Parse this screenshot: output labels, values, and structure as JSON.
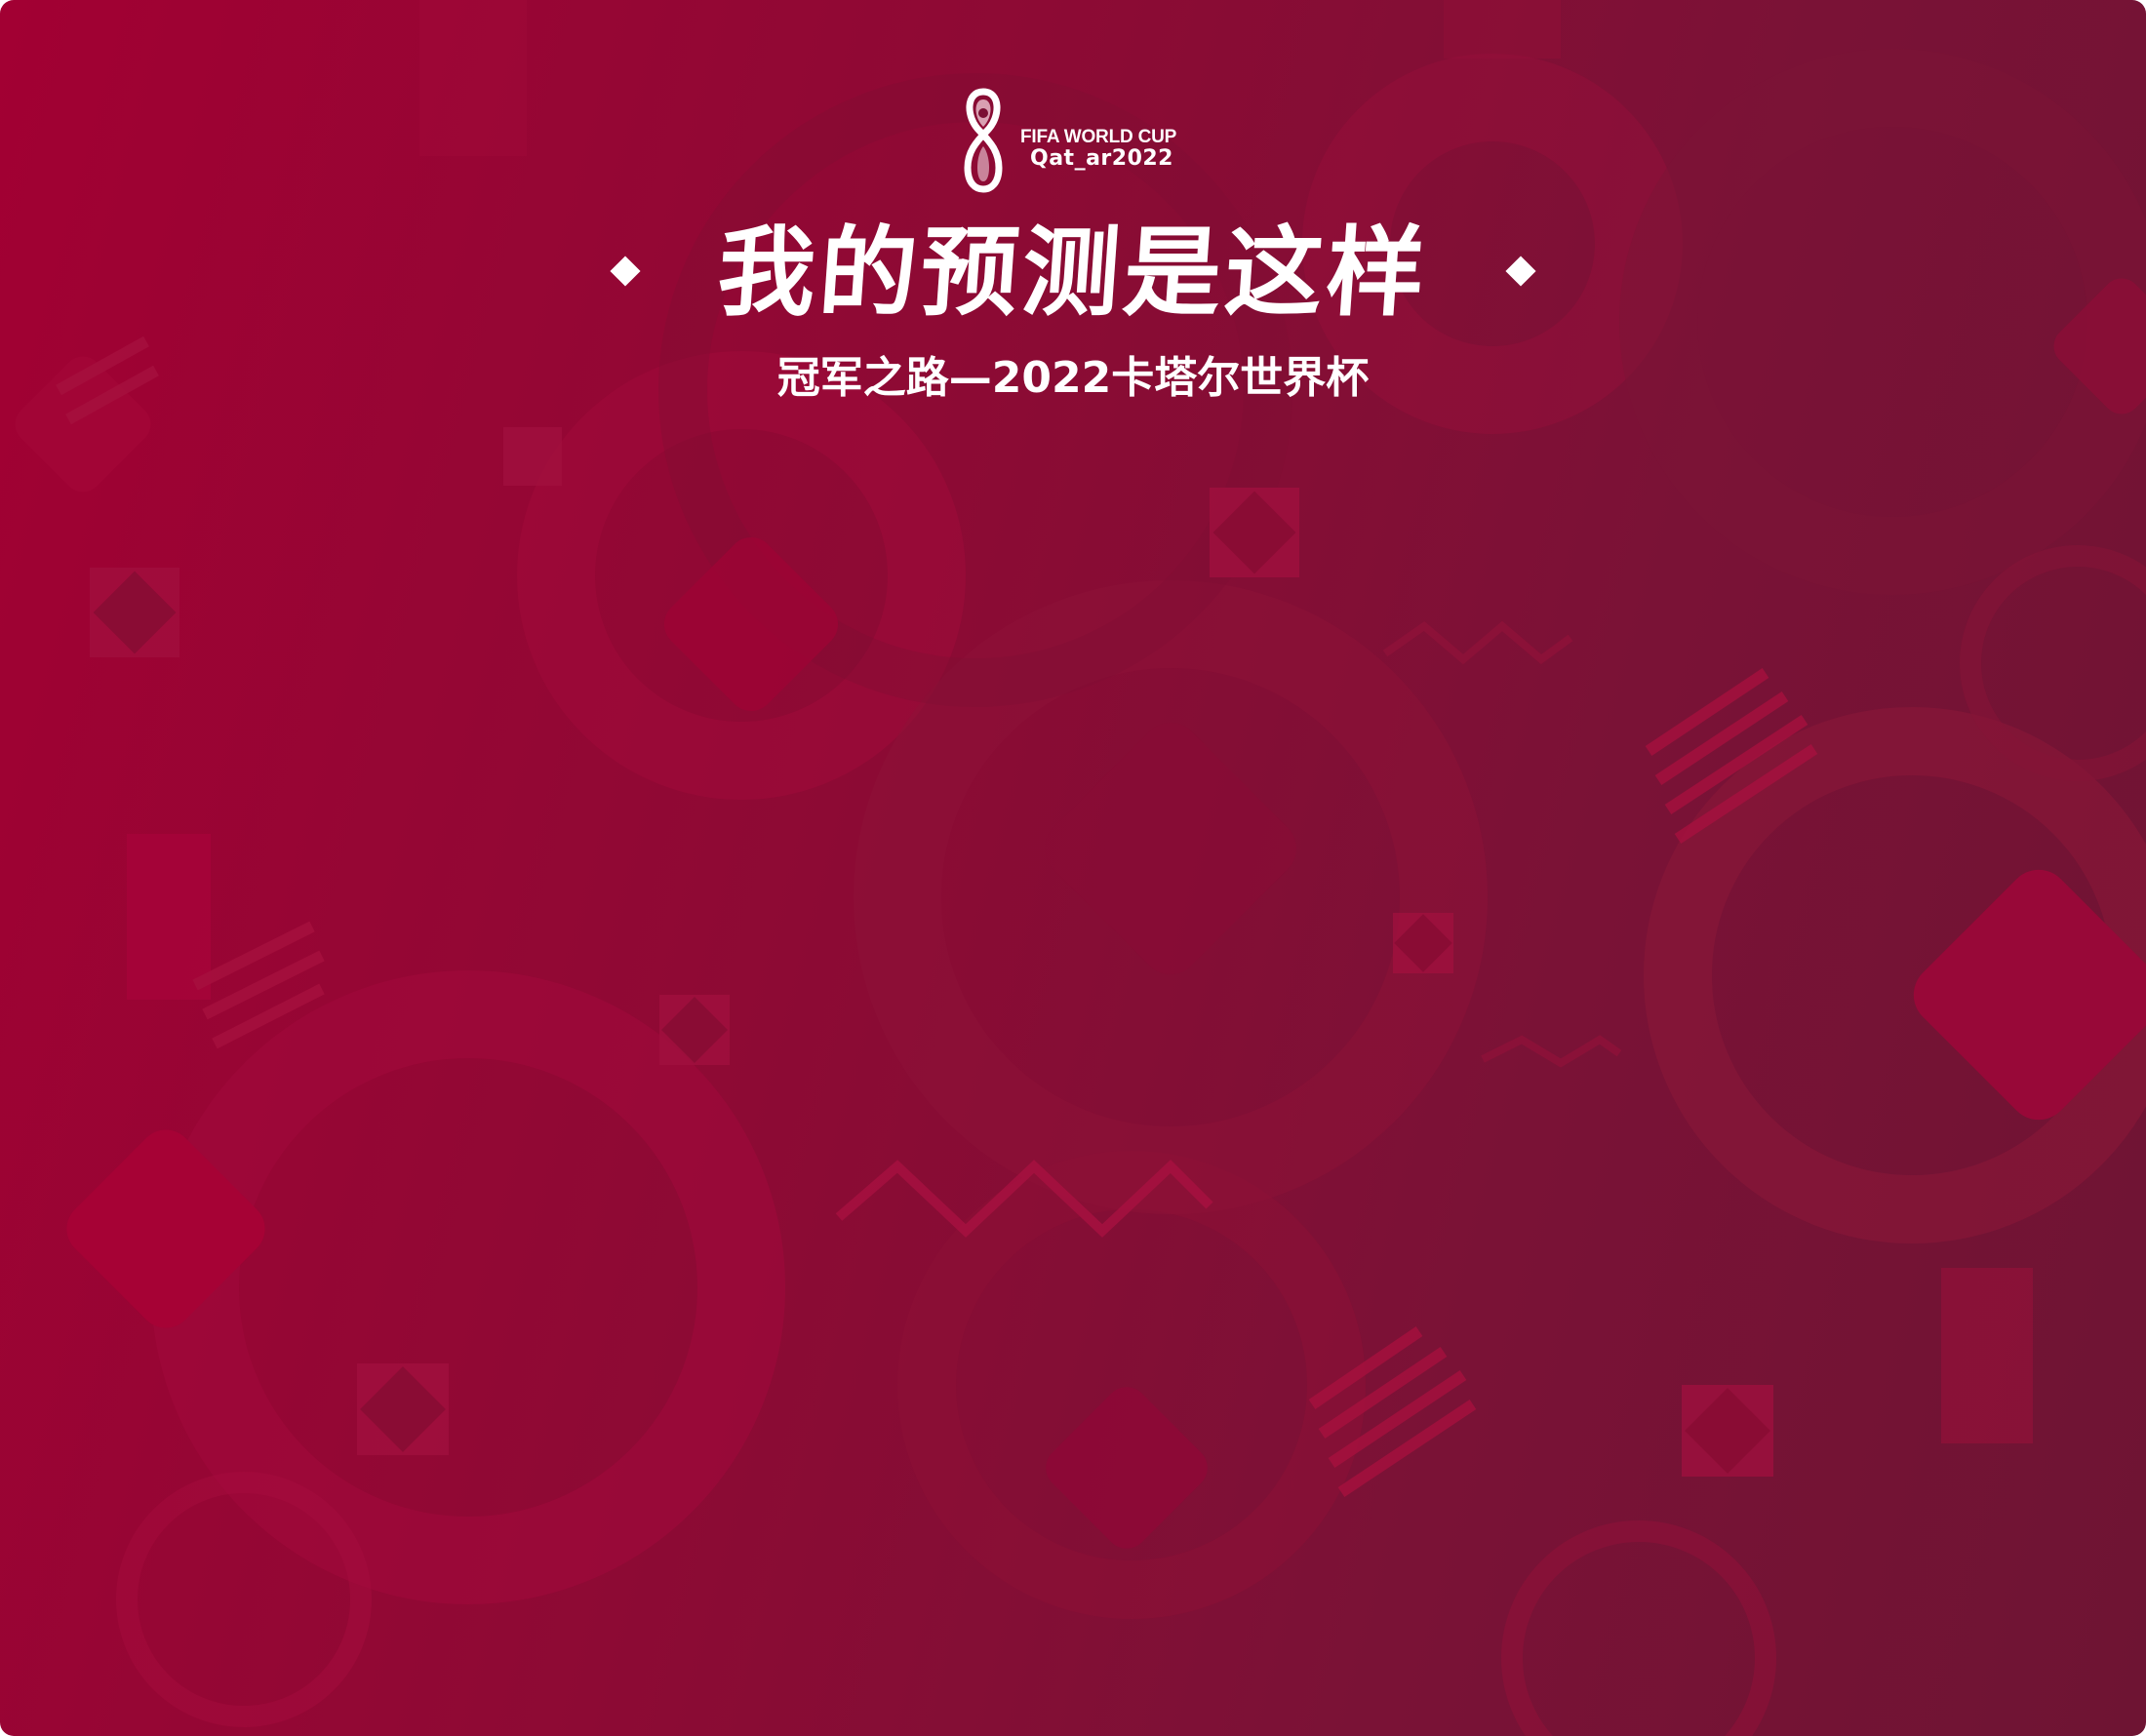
{
  "logo": {
    "emblem_icon": "world-cup-emblem-icon",
    "line1": "FIFA WORLD CUP",
    "line2": "Qat_ar2022"
  },
  "header": {
    "title": "我的预测是这样",
    "subtitle": "冠军之路—2022卡塔尔世界杯",
    "decoration_icon": "diamond-icon"
  },
  "colors": {
    "background_start": "#a20033",
    "background_end": "#6e1433",
    "text": "#ffffff"
  }
}
